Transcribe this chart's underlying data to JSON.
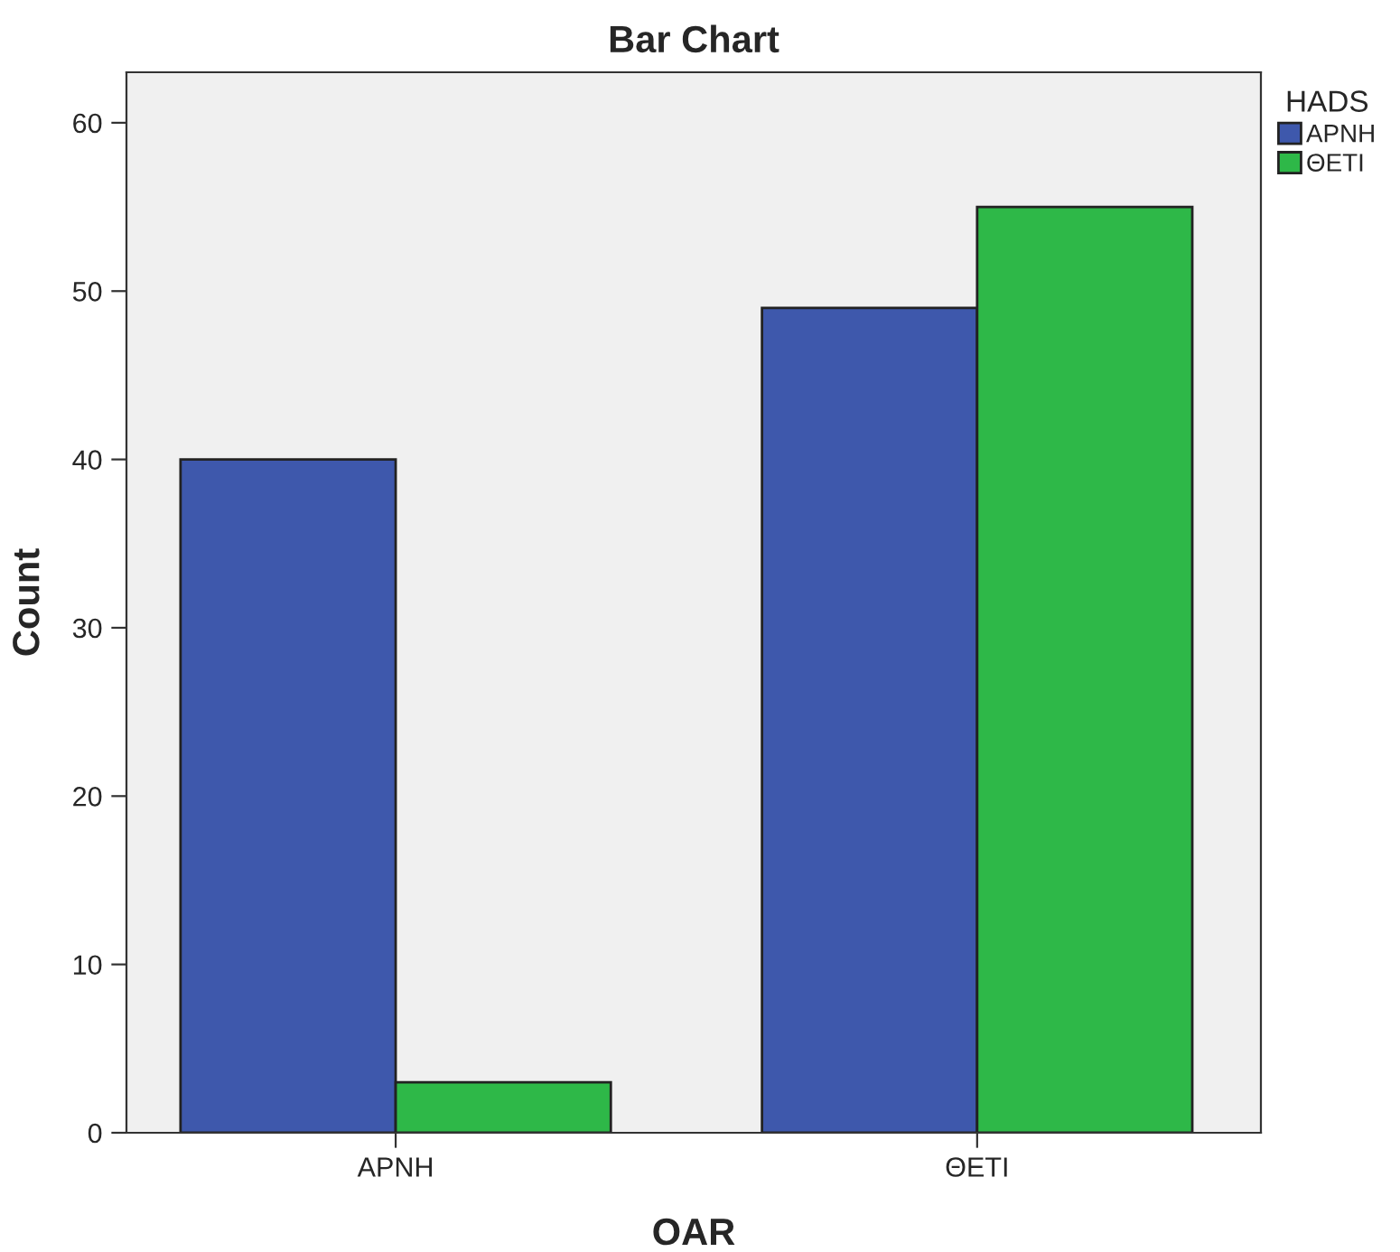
{
  "chart_data": {
    "type": "bar",
    "title": "Bar Chart",
    "xlabel": "OAR",
    "ylabel": "Count",
    "legend_title": "HADS",
    "categories": [
      "ΑΡΝΗ",
      "ΘΕΤΙ"
    ],
    "series": [
      {
        "name": "ΑΡΝΗ",
        "color": "#3e58ac",
        "values": [
          40,
          49
        ]
      },
      {
        "name": "ΘΕΤΙ",
        "color": "#2eb848",
        "values": [
          3,
          55
        ]
      }
    ],
    "ylim": [
      0,
      63
    ],
    "yticks": [
      0,
      10,
      20,
      30,
      40,
      50,
      60
    ],
    "grid": false,
    "legend": "top right"
  }
}
